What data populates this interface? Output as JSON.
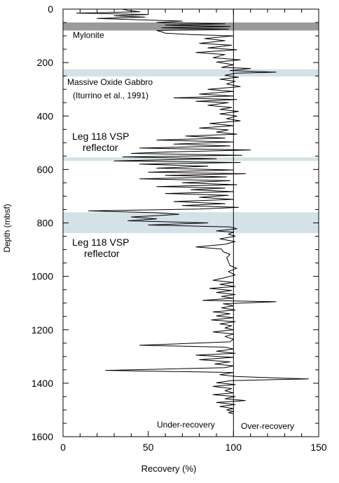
{
  "chart_data": {
    "type": "line",
    "xlabel": "Recovery (%)",
    "ylabel": "Depth (mbsf)",
    "xlim": [
      0,
      150
    ],
    "ylim": [
      1600,
      0
    ],
    "x_ticks": [
      "0",
      "50",
      "100",
      "150"
    ],
    "y_ticks": [
      "0",
      "200",
      "400",
      "600",
      "800",
      "1000",
      "1200",
      "1400",
      "1600"
    ],
    "grid": false,
    "reference_line": {
      "x": 100
    },
    "bands": [
      {
        "name": "mylonite",
        "from": 50,
        "to": 80,
        "color": "#9a9a9a"
      },
      {
        "name": "massive-oxide-gabbro",
        "from": 225,
        "to": 252,
        "color": "#d4e1e7"
      },
      {
        "name": "vsp-reflector-1",
        "from": 555,
        "to": 568,
        "color": "#d4e1e7"
      },
      {
        "name": "vsp-reflector-2",
        "from": 760,
        "to": 838,
        "color": "#d4e1e7"
      }
    ],
    "annotations": {
      "mylonite": "Mylonite",
      "oxide_gabbro": "Massive Oxide Gabbro",
      "oxide_gabbro_ref": "(Iturrino et al., 1991)",
      "vsp1_line1": "Leg 118 VSP",
      "vsp1_line2": "reflector",
      "vsp2_line1": "Leg 118 VSP",
      "vsp2_line2": "reflector",
      "under_recovery": "Under-recovery",
      "over_recovery": "Over-recovery"
    },
    "series": [
      {
        "color": "#000000",
        "points": [
          [
            35,
            0
          ],
          [
            38,
            5
          ],
          [
            45,
            10
          ],
          [
            8,
            15
          ],
          [
            50,
            20
          ],
          [
            30,
            25
          ],
          [
            48,
            30
          ],
          [
            20,
            35
          ],
          [
            45,
            40
          ],
          [
            70,
            45
          ],
          [
            55,
            50
          ],
          [
            95,
            55
          ],
          [
            60,
            60
          ],
          [
            98,
            65
          ],
          [
            58,
            70
          ],
          [
            97,
            75
          ],
          [
            55,
            80
          ],
          [
            58,
            85
          ],
          [
            60,
            90
          ],
          [
            75,
            95
          ],
          [
            100,
            100
          ],
          [
            83,
            110
          ],
          [
            95,
            118
          ],
          [
            80,
            128
          ],
          [
            99,
            135
          ],
          [
            85,
            145
          ],
          [
            102,
            152
          ],
          [
            78,
            162
          ],
          [
            95,
            170
          ],
          [
            88,
            182
          ],
          [
            104,
            190
          ],
          [
            90,
            198
          ],
          [
            100,
            208
          ],
          [
            93,
            218
          ],
          [
            110,
            222
          ],
          [
            98,
            230
          ],
          [
            125,
            236
          ],
          [
            101,
            240
          ],
          [
            95,
            248
          ],
          [
            103,
            255
          ],
          [
            92,
            262
          ],
          [
            101,
            270
          ],
          [
            96,
            280
          ],
          [
            104,
            290
          ],
          [
            85,
            300
          ],
          [
            100,
            308
          ],
          [
            80,
            318
          ],
          [
            100,
            325
          ],
          [
            65,
            332
          ],
          [
            102,
            338
          ],
          [
            78,
            345
          ],
          [
            97,
            350
          ],
          [
            85,
            360
          ],
          [
            99,
            368
          ],
          [
            92,
            375
          ],
          [
            103,
            383
          ],
          [
            92,
            392
          ],
          [
            102,
            400
          ],
          [
            96,
            410
          ],
          [
            104,
            418
          ],
          [
            86,
            428
          ],
          [
            100,
            436
          ],
          [
            80,
            445
          ],
          [
            97,
            452
          ],
          [
            90,
            460
          ],
          [
            102,
            468
          ],
          [
            72,
            475
          ],
          [
            95,
            483
          ],
          [
            55,
            490
          ],
          [
            100,
            497
          ],
          [
            65,
            505
          ],
          [
            98,
            512
          ],
          [
            45,
            520
          ],
          [
            110,
            527
          ],
          [
            60,
            535
          ],
          [
            40,
            540
          ],
          [
            105,
            547
          ],
          [
            35,
            553
          ],
          [
            90,
            560
          ],
          [
            30,
            568
          ],
          [
            104,
            574
          ],
          [
            45,
            580
          ],
          [
            85,
            588
          ],
          [
            55,
            595
          ],
          [
            100,
            602
          ],
          [
            50,
            610
          ],
          [
            107,
            616
          ],
          [
            60,
            622
          ],
          [
            96,
            628
          ],
          [
            45,
            635
          ],
          [
            98,
            642
          ],
          [
            70,
            650
          ],
          [
            102,
            657
          ],
          [
            55,
            664
          ],
          [
            95,
            670
          ],
          [
            75,
            676
          ],
          [
            100,
            683
          ],
          [
            60,
            690
          ],
          [
            97,
            697
          ],
          [
            80,
            704
          ],
          [
            100,
            712
          ],
          [
            65,
            720
          ],
          [
            95,
            728
          ],
          [
            70,
            735
          ],
          [
            103,
            742
          ],
          [
            80,
            748
          ],
          [
            15,
            755
          ],
          [
            55,
            762
          ],
          [
            68,
            768
          ],
          [
            40,
            778
          ],
          [
            55,
            785
          ],
          [
            38,
            792
          ],
          [
            85,
            800
          ],
          [
            50,
            808
          ],
          [
            98,
            815
          ],
          [
            102,
            822
          ],
          [
            90,
            830
          ],
          [
            100,
            835
          ],
          [
            97,
            842
          ],
          [
            101,
            850
          ],
          [
            92,
            860
          ],
          [
            101,
            870
          ],
          [
            95,
            880
          ],
          [
            78,
            890
          ],
          [
            93,
            898
          ],
          [
            94,
            908
          ],
          [
            98,
            918
          ],
          [
            96,
            930
          ],
          [
            97,
            945
          ],
          [
            98,
            960
          ],
          [
            102,
            970
          ],
          [
            97,
            982
          ],
          [
            101,
            995
          ],
          [
            95,
            1005
          ],
          [
            88,
            1015
          ],
          [
            100,
            1023
          ],
          [
            92,
            1030
          ],
          [
            101,
            1038
          ],
          [
            86,
            1045
          ],
          [
            99,
            1053
          ],
          [
            90,
            1060
          ],
          [
            101,
            1068
          ],
          [
            93,
            1075
          ],
          [
            100,
            1082
          ],
          [
            82,
            1090
          ],
          [
            125,
            1095
          ],
          [
            94,
            1103
          ],
          [
            100,
            1110
          ],
          [
            93,
            1118
          ],
          [
            101,
            1126
          ],
          [
            88,
            1133
          ],
          [
            98,
            1140
          ],
          [
            90,
            1148
          ],
          [
            100,
            1155
          ],
          [
            87,
            1163
          ],
          [
            101,
            1170
          ],
          [
            92,
            1178
          ],
          [
            99,
            1185
          ],
          [
            95,
            1193
          ],
          [
            100,
            1200
          ],
          [
            88,
            1208
          ],
          [
            100,
            1216
          ],
          [
            95,
            1225
          ],
          [
            100,
            1235
          ],
          [
            98,
            1245
          ],
          [
            45,
            1258
          ],
          [
            95,
            1265
          ],
          [
            100,
            1272
          ],
          [
            90,
            1280
          ],
          [
            101,
            1288
          ],
          [
            78,
            1295
          ],
          [
            100,
            1303
          ],
          [
            80,
            1312
          ],
          [
            98,
            1320
          ],
          [
            89,
            1328
          ],
          [
            100,
            1335
          ],
          [
            95,
            1342
          ],
          [
            25,
            1352
          ],
          [
            100,
            1360
          ],
          [
            92,
            1368
          ],
          [
            102,
            1375
          ],
          [
            144,
            1384
          ],
          [
            99,
            1390
          ],
          [
            90,
            1398
          ],
          [
            101,
            1405
          ],
          [
            88,
            1412
          ],
          [
            99,
            1420
          ],
          [
            95,
            1428
          ],
          [
            100,
            1436
          ],
          [
            88,
            1443
          ],
          [
            101,
            1450
          ],
          [
            95,
            1458
          ],
          [
            107,
            1465
          ],
          [
            90,
            1472
          ],
          [
            101,
            1480
          ],
          [
            92,
            1487
          ],
          [
            100,
            1495
          ],
          [
            96,
            1500
          ],
          [
            100,
            1506
          ],
          [
            97,
            1510
          ],
          [
            100,
            1515
          ]
        ]
      }
    ]
  }
}
